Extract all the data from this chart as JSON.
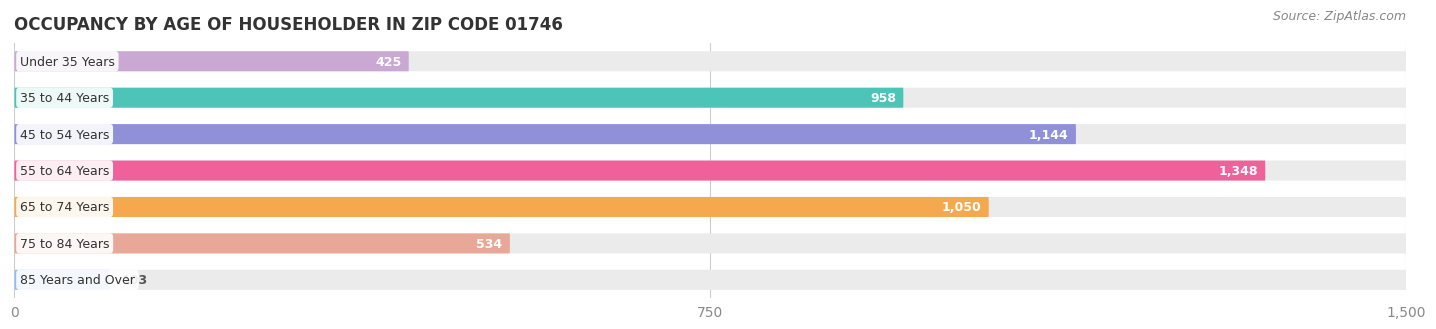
{
  "title": "OCCUPANCY BY AGE OF HOUSEHOLDER IN ZIP CODE 01746",
  "source": "Source: ZipAtlas.com",
  "categories": [
    "Under 35 Years",
    "35 to 44 Years",
    "45 to 54 Years",
    "55 to 64 Years",
    "65 to 74 Years",
    "75 to 84 Years",
    "85 Years and Over"
  ],
  "values": [
    425,
    958,
    1144,
    1348,
    1050,
    534,
    103
  ],
  "bar_colors": [
    "#c9a8d4",
    "#4dc4b8",
    "#9090d8",
    "#f0609a",
    "#f5a84e",
    "#e8a898",
    "#99bbee"
  ],
  "bar_bg_color": "#ebebeb",
  "xlim_max": 1500,
  "xticks": [
    0,
    750,
    1500
  ],
  "title_fontsize": 12,
  "label_fontsize": 9,
  "value_fontsize": 9,
  "source_fontsize": 9,
  "background_color": "#ffffff",
  "bar_height": 0.55,
  "bar_gap": 1.0,
  "value_inside_threshold": 300
}
